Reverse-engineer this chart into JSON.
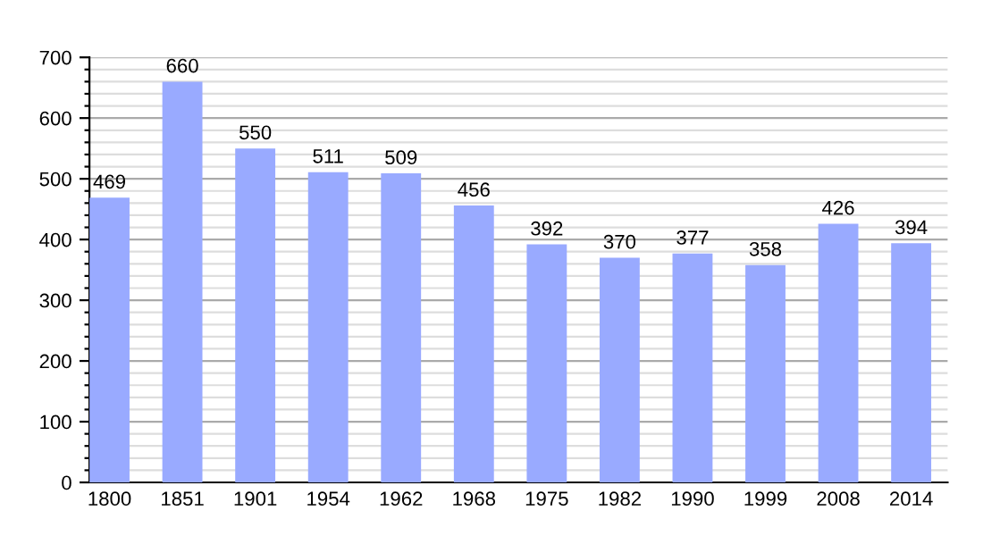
{
  "chart_data": {
    "type": "bar",
    "categories": [
      "1800",
      "1851",
      "1901",
      "1954",
      "1962",
      "1968",
      "1975",
      "1982",
      "1990",
      "1999",
      "2008",
      "2014"
    ],
    "values": [
      469,
      660,
      550,
      511,
      509,
      456,
      392,
      370,
      377,
      358,
      426,
      394
    ],
    "color": "#99aaff",
    "ylim": [
      0,
      700
    ],
    "yticks": [
      0,
      {
        "value": 20,
        "label": null
      },
      {
        "value": 40,
        "label": null
      },
      {
        "value": 60,
        "label": null
      },
      {
        "value": 80,
        "label": null
      },
      100,
      {
        "value": 120,
        "label": null
      },
      {
        "value": 140,
        "label": null
      },
      {
        "value": 160,
        "label": null
      },
      {
        "value": 180,
        "label": null
      },
      200,
      {
        "value": 220,
        "label": null
      },
      {
        "value": 240,
        "label": null
      },
      {
        "value": 260,
        "label": null
      },
      {
        "value": 280,
        "label": null
      },
      300,
      {
        "value": 320,
        "label": null
      },
      {
        "value": 340,
        "label": null
      },
      {
        "value": 360,
        "label": null
      },
      {
        "value": 380,
        "label": null
      },
      400,
      {
        "value": 420,
        "label": null
      },
      {
        "value": 440,
        "label": null
      },
      {
        "value": 460,
        "label": null
      },
      {
        "value": 480,
        "label": null
      },
      500,
      {
        "value": 520,
        "label": null
      },
      {
        "value": 540,
        "label": null
      },
      {
        "value": 560,
        "label": null
      },
      {
        "value": 580,
        "label": null
      },
      600,
      {
        "value": 620,
        "label": null
      },
      {
        "value": 640,
        "label": null
      },
      {
        "value": 660,
        "label": null
      },
      {
        "value": 680,
        "label": null
      },
      700
    ],
    "grid": "y",
    "data_labels": true
  }
}
